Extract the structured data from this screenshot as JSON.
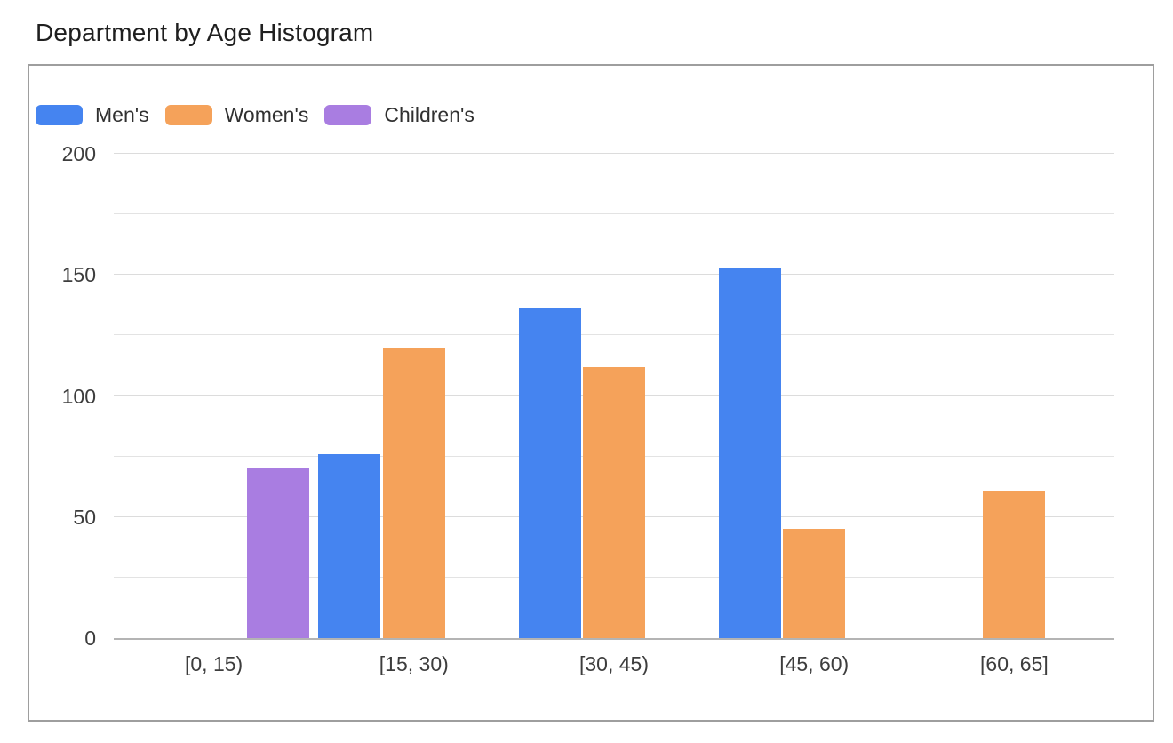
{
  "page": {
    "title": "Department by Age Histogram"
  },
  "chart_data": {
    "type": "bar",
    "title": "Department by Age Histogram",
    "categories": [
      "[0, 15)",
      "[15, 30)",
      "[30, 45)",
      "[45, 60)",
      "[60, 65]"
    ],
    "series": [
      {
        "name": "Men's",
        "color": "#4584f0",
        "values": [
          null,
          76,
          136,
          153,
          null
        ]
      },
      {
        "name": "Women's",
        "color": "#f5a25a",
        "values": [
          null,
          120,
          112,
          45,
          61
        ]
      },
      {
        "name": "Children's",
        "color": "#a97de1",
        "values": [
          70,
          null,
          null,
          null,
          null
        ]
      }
    ],
    "xlabel": "",
    "ylabel": "",
    "ylim": [
      0,
      200
    ],
    "y_major_ticks": [
      0,
      50,
      100,
      150,
      200
    ],
    "y_minor_step": 25,
    "grid": true,
    "legend_position": "top-left",
    "colors": {
      "grid_minor": "#e3e3e3",
      "grid_major": "#dcdcdc",
      "axis_baseline": "#b4b4b4",
      "card_border": "#9e9e9e",
      "axis_text": "#3d3d3d",
      "title_text": "#1f1f1f"
    }
  }
}
